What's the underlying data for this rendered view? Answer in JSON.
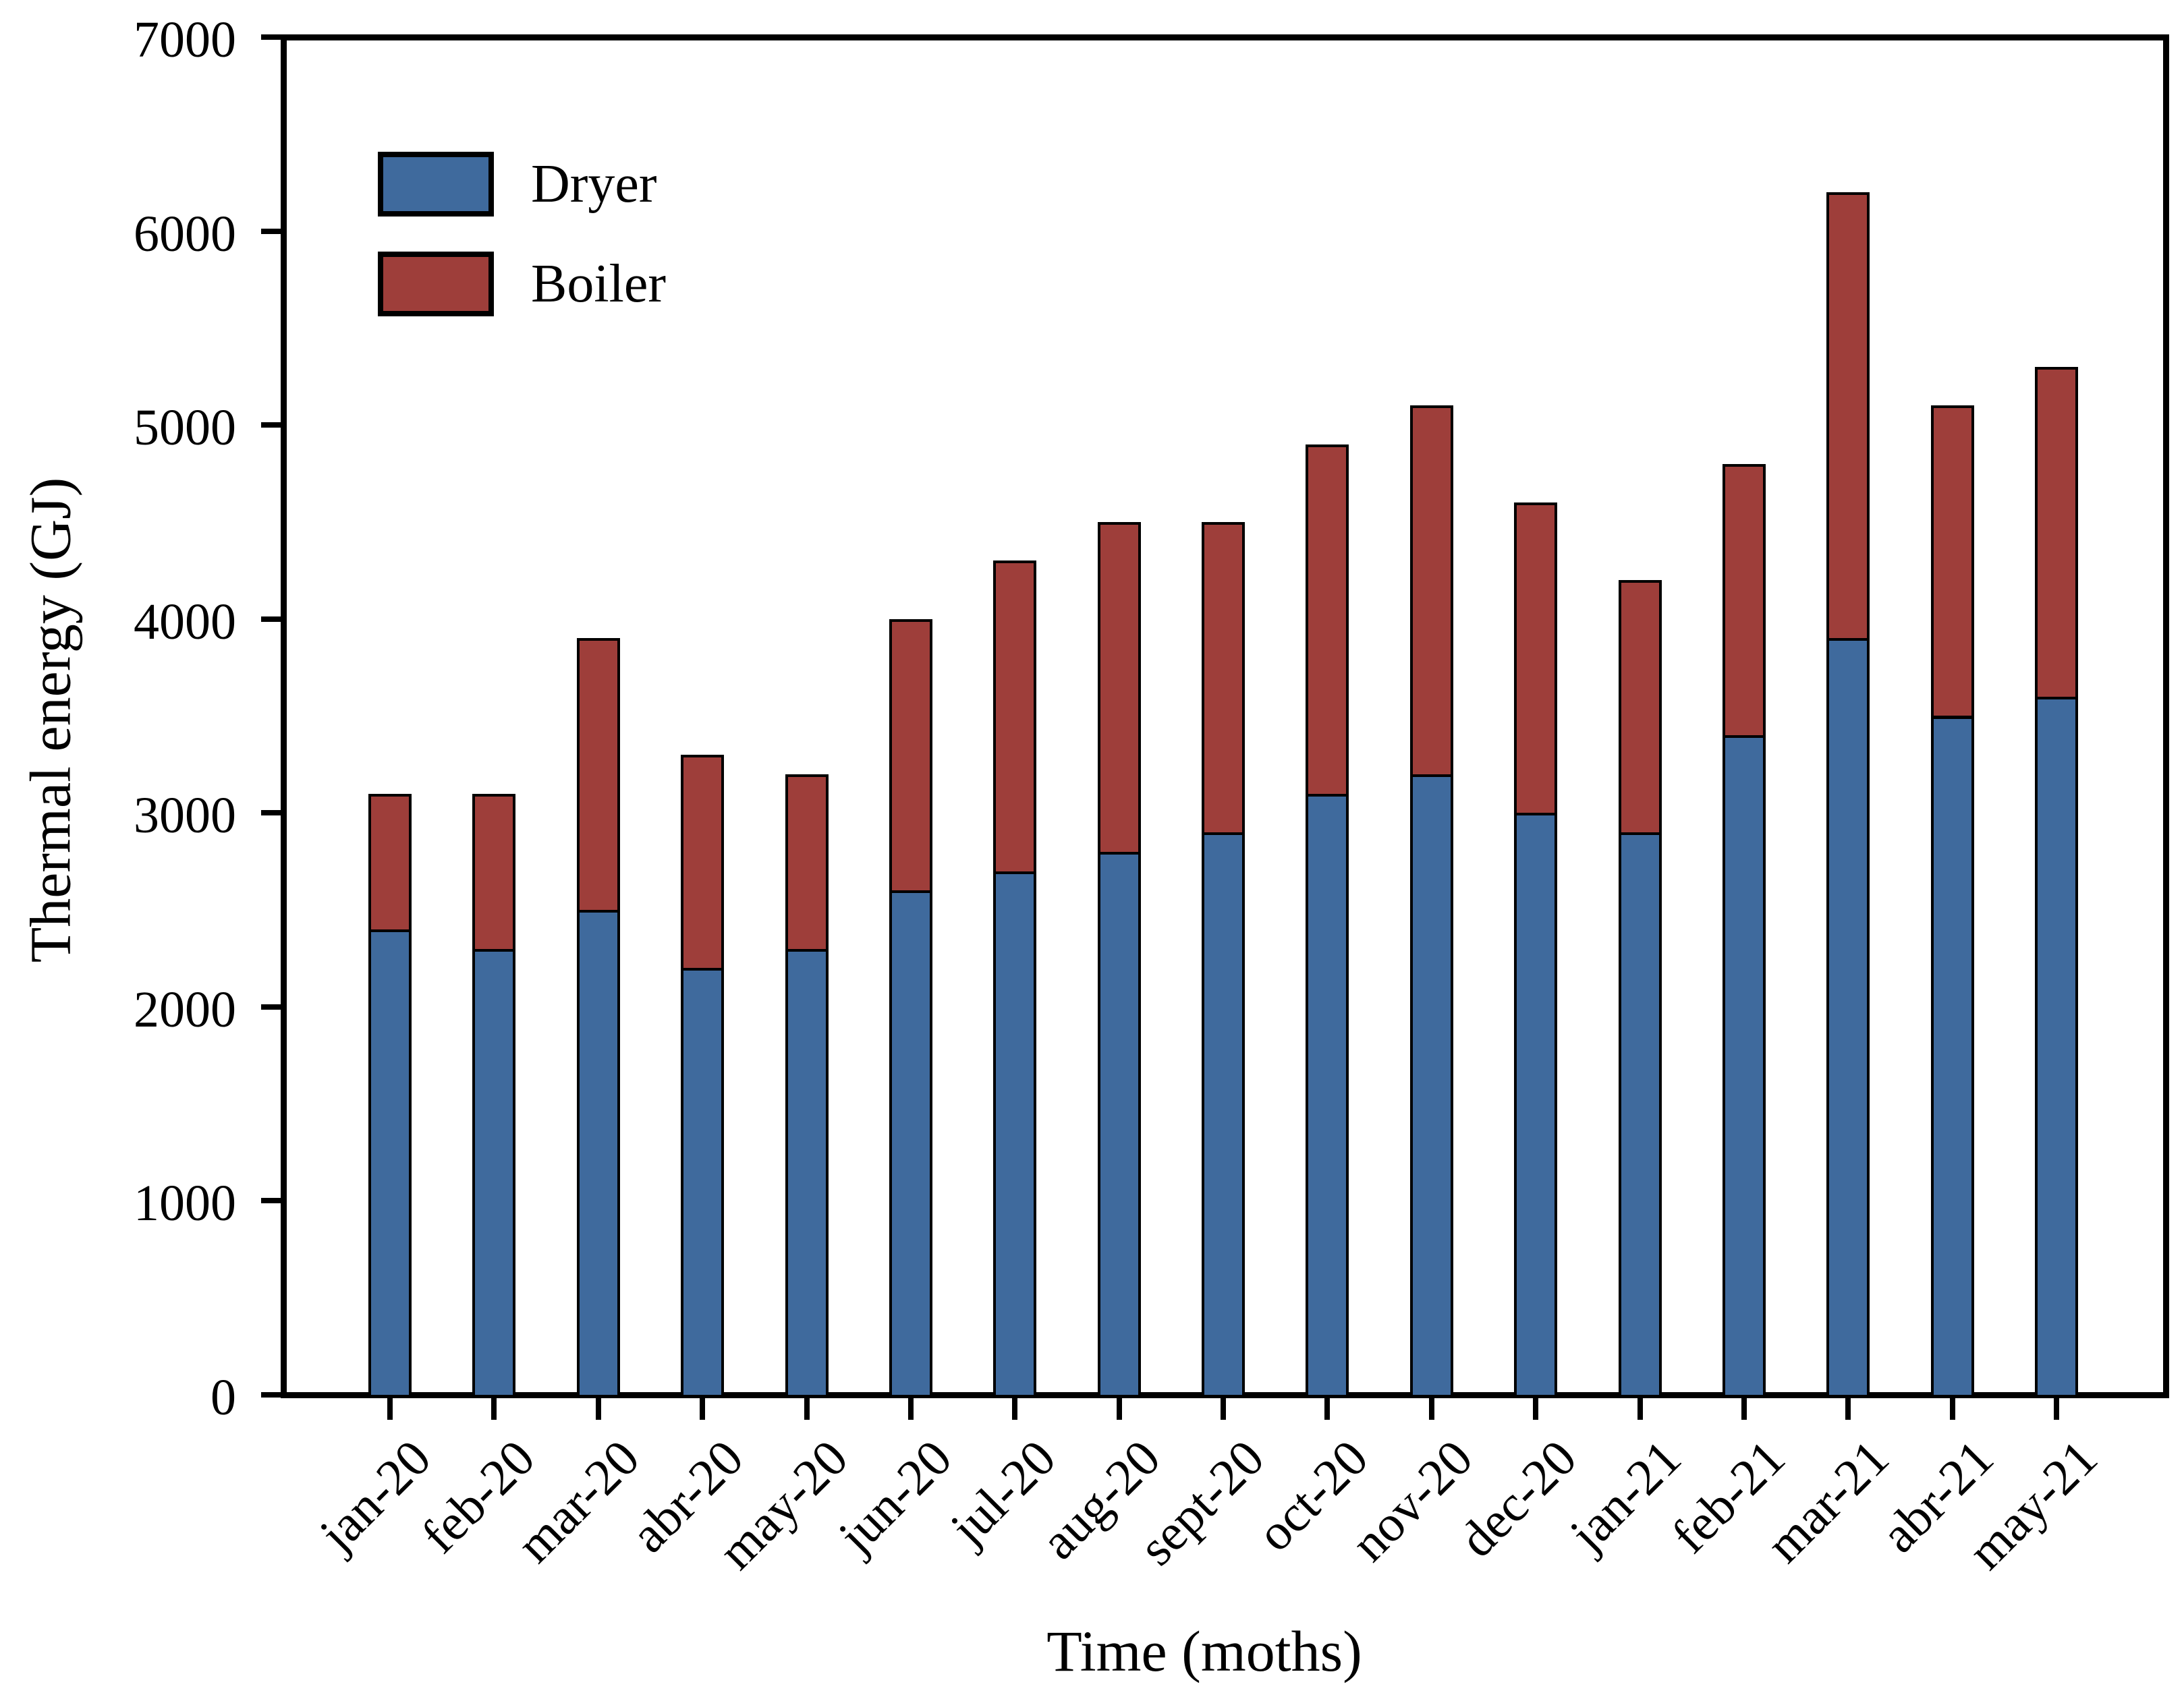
{
  "chart_data": {
    "type": "bar",
    "stacked": true,
    "title": "",
    "xlabel": "Time (moths)",
    "ylabel": "Thermal energy (GJ)",
    "categories": [
      "jan-20",
      "feb-20",
      "mar-20",
      "abr-20",
      "may-20",
      "jun-20",
      "jul-20",
      "aug-20",
      "sept-20",
      "oct-20",
      "nov-20",
      "dec-20",
      "jan-21",
      "feb-21",
      "mar-21",
      "abr-21",
      "may-21"
    ],
    "series": [
      {
        "name": "Dryer",
        "color": "#3F6A9D",
        "values": [
          2400,
          2300,
          2500,
          2200,
          2300,
          2600,
          2700,
          2800,
          2900,
          3100,
          3200,
          3000,
          2900,
          3400,
          3900,
          3500,
          3600
        ]
      },
      {
        "name": "Boiler",
        "color": "#9E3E3A",
        "values": [
          700,
          800,
          1400,
          1100,
          900,
          1400,
          1600,
          1700,
          1600,
          1800,
          1900,
          1600,
          1300,
          1400,
          2300,
          1600,
          1700
        ]
      }
    ],
    "ylim": [
      0,
      7000
    ],
    "y_ticks": [
      0,
      1000,
      2000,
      3000,
      4000,
      5000,
      6000,
      7000
    ],
    "grid": false,
    "legend_position": "top-left",
    "bar_outline_color": "#000000",
    "axis_color": "#000000",
    "background_color": "#FFFFFF"
  }
}
